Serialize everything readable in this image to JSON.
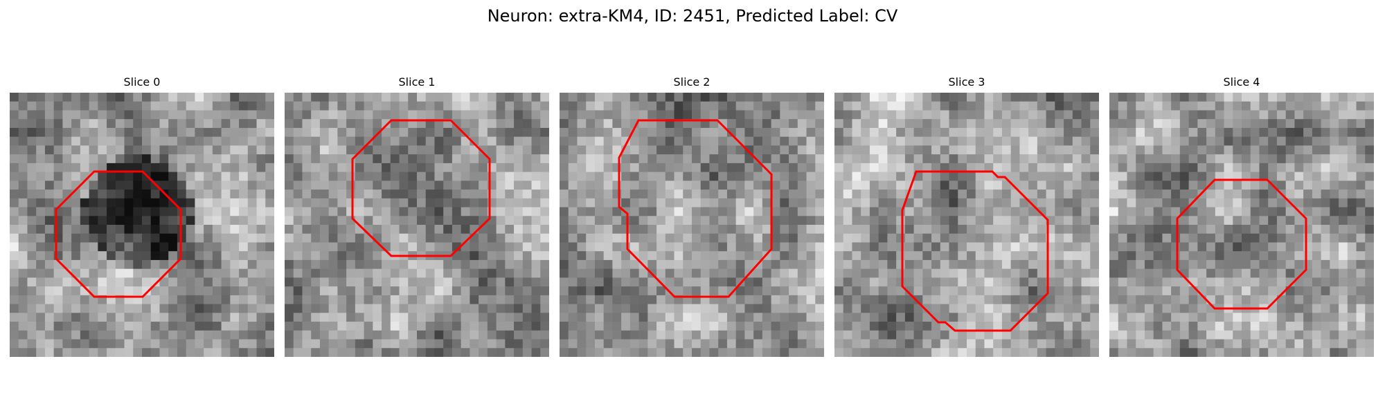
{
  "figure": {
    "title": "Neuron: extra-KM4, ID: 2451, Predicted Label: CV"
  },
  "panels": [
    {
      "title": "Slice 0",
      "seed": 11,
      "dark_center": true
    },
    {
      "title": "Slice 1",
      "seed": 23,
      "dark_center": false
    },
    {
      "title": "Slice 2",
      "seed": 37,
      "dark_center": false
    },
    {
      "title": "Slice 3",
      "seed": 41,
      "dark_center": false
    },
    {
      "title": "Slice 4",
      "seed": 59,
      "dark_center": false
    }
  ],
  "colors": {
    "outline": "#ff0000",
    "background": "#ffffff"
  }
}
